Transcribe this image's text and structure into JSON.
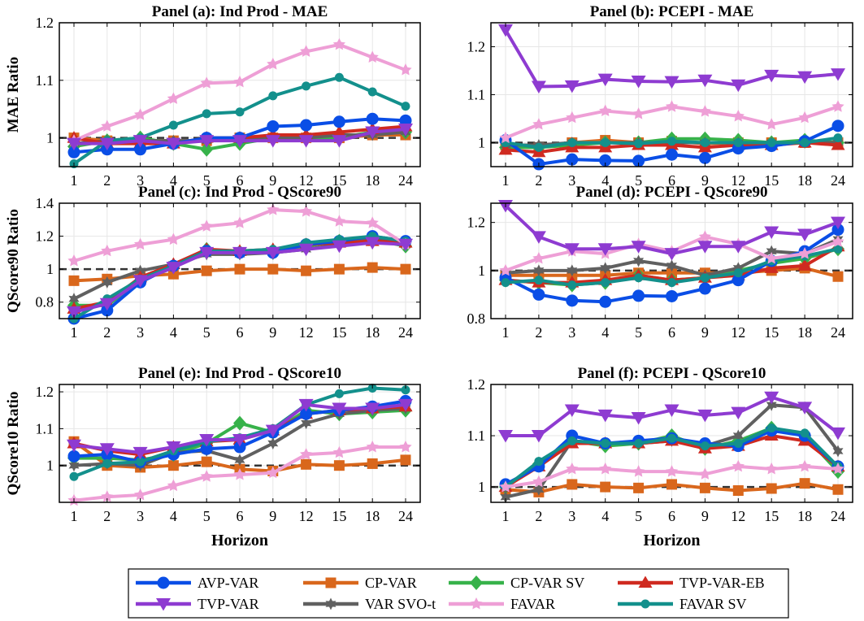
{
  "colors": {
    "AVP-VAR": "#0a4ee6",
    "CP-VAR": "#d9671c",
    "CP-VAR SV": "#37b24a",
    "TVP-VAR-EB": "#cf2a20",
    "TVP-VAR": "#8e3bd1",
    "VAR SVO-t": "#606060",
    "FAVAR": "#ee9fd6",
    "FAVAR SV": "#13908c"
  },
  "chart_data": [
    {
      "type": "line",
      "title": "Panel (a): Ind Prod - MAE",
      "ylabel": "MAE Ratio",
      "xlabel": "",
      "categories": [
        "1",
        "2",
        "3",
        "4",
        "5",
        "6",
        "9",
        "12",
        "15",
        "18",
        "24"
      ],
      "ylim": [
        0.95,
        1.2
      ],
      "yticks": [
        1,
        1.1,
        1.2
      ],
      "ytick_labels": [
        "1",
        "1.1",
        "1.2"
      ],
      "series": [
        {
          "name": "AVP-VAR",
          "values": [
            0.975,
            0.98,
            0.98,
            0.99,
            1.0,
            1.0,
            1.02,
            1.022,
            1.028,
            1.033,
            1.03
          ]
        },
        {
          "name": "CP-VAR",
          "values": [
            1.0,
            0.995,
            0.995,
            0.995,
            0.995,
            1.0,
            1.0,
            1.0,
            1.0,
            1.005,
            1.005
          ]
        },
        {
          "name": "CP-VAR SV",
          "values": [
            0.985,
            0.995,
            1.0,
            0.99,
            0.98,
            0.99,
            1.0,
            1.0,
            1.0,
            1.01,
            1.01
          ]
        },
        {
          "name": "TVP-VAR-EB",
          "values": [
            1.0,
            0.99,
            0.99,
            0.99,
            1.0,
            1.0,
            1.005,
            1.005,
            1.01,
            1.015,
            1.02
          ]
        },
        {
          "name": "TVP-VAR",
          "values": [
            0.99,
            0.99,
            0.995,
            0.99,
            0.995,
            0.995,
            0.995,
            0.995,
            0.995,
            1.01,
            1.015
          ]
        },
        {
          "name": "VAR SVO-t",
          "values": [
            0.99,
            0.995,
            0.995,
            0.995,
            0.995,
            1.0,
            1.0,
            1.0,
            1.005,
            1.005,
            1.01
          ]
        },
        {
          "name": "FAVAR",
          "values": [
            0.995,
            1.02,
            1.04,
            1.068,
            1.095,
            1.097,
            1.128,
            1.15,
            1.162,
            1.14,
            1.118
          ]
        },
        {
          "name": "FAVAR SV",
          "values": [
            0.955,
            0.995,
            1.0,
            1.022,
            1.042,
            1.045,
            1.073,
            1.09,
            1.105,
            1.08,
            1.055
          ]
        }
      ]
    },
    {
      "type": "line",
      "title": "Panel (b): PCEPI - MAE",
      "ylabel": "",
      "xlabel": "",
      "categories": [
        "1",
        "2",
        "3",
        "4",
        "5",
        "6",
        "9",
        "12",
        "15",
        "18",
        "24"
      ],
      "ylim": [
        0.95,
        1.25
      ],
      "yticks": [
        1,
        1.1,
        1.2
      ],
      "ytick_labels": [
        "1",
        "1.1",
        "1.2"
      ],
      "series": [
        {
          "name": "AVP-VAR",
          "values": [
            1.005,
            0.955,
            0.965,
            0.963,
            0.962,
            0.975,
            0.968,
            0.988,
            0.993,
            1.003,
            1.035
          ]
        },
        {
          "name": "CP-VAR",
          "values": [
            0.995,
            0.99,
            1.0,
            1.005,
            1.0,
            1.003,
            0.998,
            1.0,
            1.0,
            1.0,
            1.0
          ]
        },
        {
          "name": "CP-VAR SV",
          "values": [
            0.99,
            0.99,
            0.995,
            1.0,
            1.0,
            1.008,
            1.008,
            1.005,
            1.0,
            1.005,
            1.0
          ]
        },
        {
          "name": "TVP-VAR-EB",
          "values": [
            0.985,
            0.98,
            0.99,
            0.99,
            0.995,
            0.995,
            0.99,
            0.995,
            0.995,
            1.0,
            0.995
          ]
        },
        {
          "name": "TVP-VAR",
          "values": [
            1.235,
            1.117,
            1.118,
            1.132,
            1.128,
            1.127,
            1.13,
            1.12,
            1.14,
            1.137,
            1.143
          ]
        },
        {
          "name": "VAR SVO-t",
          "values": [
            0.995,
            0.995,
            1.0,
            1.0,
            1.0,
            1.0,
            1.0,
            1.0,
            1.0,
            1.0,
            1.0
          ]
        },
        {
          "name": "FAVAR",
          "values": [
            1.01,
            1.038,
            1.052,
            1.066,
            1.06,
            1.075,
            1.065,
            1.055,
            1.038,
            1.052,
            1.075
          ]
        },
        {
          "name": "FAVAR SV",
          "values": [
            1.0,
            0.99,
            1.0,
            1.0,
            0.998,
            1.003,
            1.0,
            1.0,
            1.0,
            1.0,
            1.01
          ]
        }
      ]
    },
    {
      "type": "line",
      "title": "Panel (c): Ind Prod - QScore90",
      "ylabel": "QScore90 Ratio",
      "xlabel": "",
      "categories": [
        "1",
        "2",
        "3",
        "4",
        "5",
        "6",
        "9",
        "12",
        "15",
        "18",
        "24"
      ],
      "ylim": [
        0.7,
        1.4
      ],
      "yticks": [
        0.8,
        1,
        1.2,
        1.4
      ],
      "ytick_labels": [
        "0.8",
        "1",
        "1.2",
        "1.4"
      ],
      "series": [
        {
          "name": "AVP-VAR",
          "values": [
            0.7,
            0.75,
            0.92,
            1.02,
            1.11,
            1.1,
            1.1,
            1.15,
            1.17,
            1.2,
            1.17
          ]
        },
        {
          "name": "CP-VAR",
          "values": [
            0.93,
            0.94,
            0.96,
            0.97,
            0.99,
            1.0,
            1.0,
            0.99,
            1.0,
            1.01,
            1.0
          ]
        },
        {
          "name": "CP-VAR SV",
          "values": [
            0.78,
            0.78,
            0.93,
            1.02,
            1.12,
            1.1,
            1.1,
            1.14,
            1.17,
            1.18,
            1.14
          ]
        },
        {
          "name": "TVP-VAR-EB",
          "values": [
            0.76,
            0.8,
            0.95,
            1.03,
            1.12,
            1.11,
            1.12,
            1.15,
            1.16,
            1.17,
            1.16
          ]
        },
        {
          "name": "TVP-VAR",
          "values": [
            0.74,
            0.79,
            0.93,
            1.01,
            1.1,
            1.1,
            1.1,
            1.12,
            1.14,
            1.16,
            1.15
          ]
        },
        {
          "name": "VAR SVO-t",
          "values": [
            0.82,
            0.92,
            0.99,
            1.03,
            1.09,
            1.09,
            1.1,
            1.12,
            1.15,
            1.18,
            1.17
          ]
        },
        {
          "name": "FAVAR",
          "values": [
            1.05,
            1.11,
            1.15,
            1.18,
            1.26,
            1.28,
            1.36,
            1.35,
            1.29,
            1.28,
            1.15
          ]
        },
        {
          "name": "FAVAR SV",
          "values": [
            0.7,
            0.82,
            0.94,
            1.02,
            1.11,
            1.11,
            1.12,
            1.16,
            1.18,
            1.2,
            1.17
          ]
        }
      ]
    },
    {
      "type": "line",
      "title": "Panel (d): PCEPI - QScore90",
      "ylabel": "",
      "xlabel": "",
      "categories": [
        "1",
        "2",
        "3",
        "4",
        "5",
        "6",
        "9",
        "12",
        "15",
        "18",
        "24"
      ],
      "ylim": [
        0.8,
        1.28
      ],
      "yticks": [
        0.8,
        1,
        1.2
      ],
      "ytick_labels": [
        "0.8",
        "1",
        "1.2"
      ],
      "series": [
        {
          "name": "AVP-VAR",
          "values": [
            0.97,
            0.9,
            0.875,
            0.87,
            0.895,
            0.893,
            0.925,
            0.96,
            1.04,
            1.08,
            1.17
          ]
        },
        {
          "name": "CP-VAR",
          "values": [
            0.98,
            0.98,
            0.98,
            0.98,
            0.99,
            0.99,
            0.99,
            0.99,
            1.0,
            1.01,
            0.975
          ]
        },
        {
          "name": "CP-VAR SV",
          "values": [
            0.96,
            0.95,
            0.94,
            0.95,
            0.98,
            0.96,
            0.97,
            1.0,
            1.03,
            1.05,
            1.09
          ]
        },
        {
          "name": "TVP-VAR-EB",
          "values": [
            0.96,
            0.95,
            0.95,
            0.96,
            0.98,
            0.96,
            0.97,
            0.98,
            1.01,
            1.02,
            1.1
          ]
        },
        {
          "name": "TVP-VAR",
          "values": [
            1.27,
            1.14,
            1.09,
            1.09,
            1.1,
            1.07,
            1.1,
            1.1,
            1.16,
            1.15,
            1.2
          ]
        },
        {
          "name": "VAR SVO-t",
          "values": [
            0.99,
            1.0,
            1.0,
            1.01,
            1.04,
            1.02,
            0.98,
            1.01,
            1.08,
            1.07,
            1.13
          ]
        },
        {
          "name": "FAVAR",
          "values": [
            1.0,
            1.05,
            1.08,
            1.07,
            1.11,
            1.08,
            1.14,
            1.11,
            1.05,
            1.07,
            1.12
          ]
        },
        {
          "name": "FAVAR SV",
          "values": [
            0.95,
            0.96,
            0.94,
            0.95,
            0.97,
            0.95,
            0.97,
            0.99,
            1.04,
            1.06,
            1.09
          ]
        }
      ]
    },
    {
      "type": "line",
      "title": "Panel (e): Ind Prod - QScore10",
      "ylabel": "QScore10 Ratio",
      "xlabel": "Horizon",
      "categories": [
        "1",
        "2",
        "3",
        "4",
        "5",
        "6",
        "9",
        "12",
        "15",
        "18",
        "24"
      ],
      "ylim": [
        0.9,
        1.22
      ],
      "yticks": [
        1,
        1.1,
        1.2
      ],
      "ytick_labels": [
        "1",
        "1.1",
        "1.2"
      ],
      "series": [
        {
          "name": "AVP-VAR",
          "values": [
            1.025,
            1.03,
            1.01,
            1.03,
            1.045,
            1.05,
            1.09,
            1.14,
            1.15,
            1.16,
            1.175
          ]
        },
        {
          "name": "CP-VAR",
          "values": [
            1.065,
            1.0,
            0.995,
            1.0,
            1.01,
            0.99,
            0.985,
            1.003,
            1.0,
            1.005,
            1.015
          ]
        },
        {
          "name": "CP-VAR SV",
          "values": [
            1.02,
            1.02,
            1.015,
            1.03,
            1.06,
            1.115,
            1.09,
            1.15,
            1.14,
            1.145,
            1.15
          ]
        },
        {
          "name": "TVP-VAR-EB",
          "values": [
            1.06,
            1.04,
            1.03,
            1.05,
            1.065,
            1.07,
            1.095,
            1.14,
            1.15,
            1.155,
            1.16
          ]
        },
        {
          "name": "TVP-VAR",
          "values": [
            1.055,
            1.045,
            1.035,
            1.05,
            1.07,
            1.07,
            1.095,
            1.165,
            1.155,
            1.155,
            1.165
          ]
        },
        {
          "name": "VAR SVO-t",
          "values": [
            1.0,
            1.005,
            1.0,
            1.035,
            1.04,
            1.015,
            1.06,
            1.115,
            1.14,
            1.15,
            1.155
          ]
        },
        {
          "name": "FAVAR",
          "values": [
            0.905,
            0.915,
            0.92,
            0.945,
            0.97,
            0.975,
            0.98,
            1.03,
            1.035,
            1.05,
            1.05
          ]
        },
        {
          "name": "FAVAR SV",
          "values": [
            0.97,
            1.005,
            1.01,
            1.04,
            1.065,
            1.075,
            1.1,
            1.165,
            1.195,
            1.21,
            1.205
          ]
        }
      ]
    },
    {
      "type": "line",
      "title": "Panel (f): PCEPI - QScore10",
      "ylabel": "",
      "xlabel": "Horizon",
      "categories": [
        "1",
        "2",
        "3",
        "4",
        "5",
        "6",
        "9",
        "12",
        "15",
        "18",
        "24"
      ],
      "ylim": [
        0.97,
        1.2
      ],
      "yticks": [
        1,
        1.1,
        1.2
      ],
      "ytick_labels": [
        "1",
        "1.1",
        "1.2"
      ],
      "series": [
        {
          "name": "AVP-VAR",
          "values": [
            1.005,
            1.04,
            1.1,
            1.085,
            1.09,
            1.095,
            1.085,
            1.08,
            1.11,
            1.1,
            1.04
          ]
        },
        {
          "name": "CP-VAR",
          "values": [
            0.995,
            0.99,
            1.005,
            1.0,
            0.998,
            1.005,
            0.998,
            0.993,
            0.997,
            1.007,
            0.995
          ]
        },
        {
          "name": "CP-VAR SV",
          "values": [
            1.0,
            1.045,
            1.09,
            1.08,
            1.085,
            1.1,
            1.075,
            1.09,
            1.115,
            1.1,
            1.03
          ]
        },
        {
          "name": "TVP-VAR-EB",
          "values": [
            1.0,
            1.04,
            1.085,
            1.085,
            1.085,
            1.09,
            1.075,
            1.08,
            1.1,
            1.09,
            1.04
          ]
        },
        {
          "name": "TVP-VAR",
          "values": [
            1.1,
            1.1,
            1.15,
            1.14,
            1.135,
            1.15,
            1.14,
            1.145,
            1.175,
            1.155,
            1.105
          ]
        },
        {
          "name": "VAR SVO-t",
          "values": [
            0.98,
            0.995,
            1.09,
            1.085,
            1.085,
            1.09,
            1.08,
            1.1,
            1.16,
            1.155,
            1.07
          ]
        },
        {
          "name": "FAVAR",
          "values": [
            1.0,
            1.01,
            1.035,
            1.035,
            1.03,
            1.03,
            1.025,
            1.04,
            1.035,
            1.04,
            1.035
          ]
        },
        {
          "name": "FAVAR SV",
          "values": [
            1.0,
            1.05,
            1.09,
            1.085,
            1.085,
            1.095,
            1.08,
            1.085,
            1.115,
            1.105,
            1.04
          ]
        }
      ]
    }
  ],
  "legend": {
    "position": "bottom-center",
    "entries": [
      "AVP-VAR",
      "CP-VAR",
      "CP-VAR SV",
      "TVP-VAR-EB",
      "TVP-VAR",
      "VAR SVO-t",
      "FAVAR",
      "FAVAR SV"
    ]
  },
  "markers": {
    "AVP-VAR": "circle",
    "CP-VAR": "square",
    "CP-VAR SV": "diamond",
    "TVP-VAR-EB": "triangle-up",
    "TVP-VAR": "triangle-down",
    "VAR SVO-t": "hexagram",
    "FAVAR": "pentagram",
    "FAVAR SV": "small-circle"
  },
  "reference_line": 1
}
